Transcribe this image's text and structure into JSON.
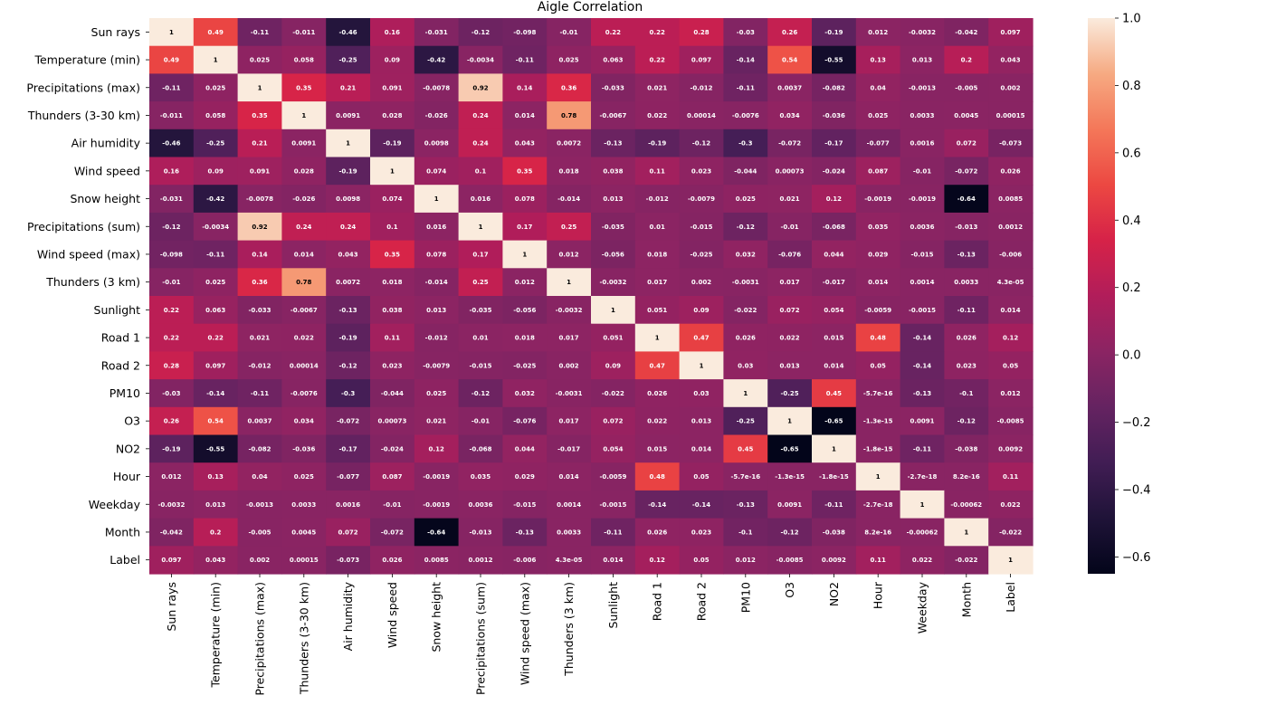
{
  "chart_data": {
    "type": "heatmap",
    "title": "Aigle Correlation",
    "xlabel": "",
    "ylabel": "",
    "labels": [
      "Sun rays",
      "Temperature (min)",
      "Precipitations (max)",
      "Thunders (3-30 km)",
      "Air humidity",
      "Wind speed",
      "Snow height",
      "Precipitations (sum)",
      "Wind speed (max)",
      "Thunders (3 km)",
      "Sunlight",
      "Road 1",
      "Road 2",
      "PM10",
      "O3",
      "NO2",
      "Hour",
      "Weekday",
      "Month",
      "Label"
    ],
    "matrix": [
      [
        "1",
        "0.49",
        "-0.11",
        "-0.011",
        "-0.46",
        "0.16",
        "-0.031",
        "-0.12",
        "-0.098",
        "-0.01",
        "0.22",
        "0.22",
        "0.28",
        "-0.03",
        "0.26",
        "-0.19",
        "0.012",
        "-0.0032",
        "-0.042",
        "0.097"
      ],
      [
        "0.49",
        "1",
        "0.025",
        "0.058",
        "-0.25",
        "0.09",
        "-0.42",
        "-0.0034",
        "-0.11",
        "0.025",
        "0.063",
        "0.22",
        "0.097",
        "-0.14",
        "0.54",
        "-0.55",
        "0.13",
        "0.013",
        "0.2",
        "0.043"
      ],
      [
        "-0.11",
        "0.025",
        "1",
        "0.35",
        "0.21",
        "0.091",
        "-0.0078",
        "0.92",
        "0.14",
        "0.36",
        "-0.033",
        "0.021",
        "-0.012",
        "-0.11",
        "0.0037",
        "-0.082",
        "0.04",
        "-0.0013",
        "-0.005",
        "0.002"
      ],
      [
        "-0.011",
        "0.058",
        "0.35",
        "1",
        "0.0091",
        "0.028",
        "-0.026",
        "0.24",
        "0.014",
        "0.78",
        "-0.0067",
        "0.022",
        "0.00014",
        "-0.0076",
        "0.034",
        "-0.036",
        "0.025",
        "0.0033",
        "0.0045",
        "0.00015"
      ],
      [
        "-0.46",
        "-0.25",
        "0.21",
        "0.0091",
        "1",
        "-0.19",
        "0.0098",
        "0.24",
        "0.043",
        "0.0072",
        "-0.13",
        "-0.19",
        "-0.12",
        "-0.3",
        "-0.072",
        "-0.17",
        "-0.077",
        "0.0016",
        "0.072",
        "-0.073"
      ],
      [
        "0.16",
        "0.09",
        "0.091",
        "0.028",
        "-0.19",
        "1",
        "0.074",
        "0.1",
        "0.35",
        "0.018",
        "0.038",
        "0.11",
        "0.023",
        "-0.044",
        "0.00073",
        "-0.024",
        "0.087",
        "-0.01",
        "-0.072",
        "0.026"
      ],
      [
        "-0.031",
        "-0.42",
        "-0.0078",
        "-0.026",
        "0.0098",
        "0.074",
        "1",
        "0.016",
        "0.078",
        "-0.014",
        "0.013",
        "-0.012",
        "-0.0079",
        "0.025",
        "0.021",
        "0.12",
        "-0.0019",
        "-0.0019",
        "-0.64",
        "0.0085"
      ],
      [
        "-0.12",
        "-0.0034",
        "0.92",
        "0.24",
        "0.24",
        "0.1",
        "0.016",
        "1",
        "0.17",
        "0.25",
        "-0.035",
        "0.01",
        "-0.015",
        "-0.12",
        "-0.01",
        "-0.068",
        "0.035",
        "0.0036",
        "-0.013",
        "0.0012"
      ],
      [
        "-0.098",
        "-0.11",
        "0.14",
        "0.014",
        "0.043",
        "0.35",
        "0.078",
        "0.17",
        "1",
        "0.012",
        "-0.056",
        "0.018",
        "-0.025",
        "0.032",
        "-0.076",
        "0.044",
        "0.029",
        "-0.015",
        "-0.13",
        "-0.006"
      ],
      [
        "-0.01",
        "0.025",
        "0.36",
        "0.78",
        "0.0072",
        "0.018",
        "-0.014",
        "0.25",
        "0.012",
        "1",
        "-0.0032",
        "0.017",
        "0.002",
        "-0.0031",
        "0.017",
        "-0.017",
        "0.014",
        "0.0014",
        "0.0033",
        "4.3e-05"
      ],
      [
        "0.22",
        "0.063",
        "-0.033",
        "-0.0067",
        "-0.13",
        "0.038",
        "0.013",
        "-0.035",
        "-0.056",
        "-0.0032",
        "1",
        "0.051",
        "0.09",
        "-0.022",
        "0.072",
        "0.054",
        "-0.0059",
        "-0.0015",
        "-0.11",
        "0.014"
      ],
      [
        "0.22",
        "0.22",
        "0.021",
        "0.022",
        "-0.19",
        "0.11",
        "-0.012",
        "0.01",
        "0.018",
        "0.017",
        "0.051",
        "1",
        "0.47",
        "0.026",
        "0.022",
        "0.015",
        "0.48",
        "-0.14",
        "0.026",
        "0.12"
      ],
      [
        "0.28",
        "0.097",
        "-0.012",
        "0.00014",
        "-0.12",
        "0.023",
        "-0.0079",
        "-0.015",
        "-0.025",
        "0.002",
        "0.09",
        "0.47",
        "1",
        "0.03",
        "0.013",
        "0.014",
        "0.05",
        "-0.14",
        "0.023",
        "0.05"
      ],
      [
        "-0.03",
        "-0.14",
        "-0.11",
        "-0.0076",
        "-0.3",
        "-0.044",
        "0.025",
        "-0.12",
        "0.032",
        "-0.0031",
        "-0.022",
        "0.026",
        "0.03",
        "1",
        "-0.25",
        "0.45",
        "-5.7e-16",
        "-0.13",
        "-0.1",
        "0.012"
      ],
      [
        "0.26",
        "0.54",
        "0.0037",
        "0.034",
        "-0.072",
        "0.00073",
        "0.021",
        "-0.01",
        "-0.076",
        "0.017",
        "0.072",
        "0.022",
        "0.013",
        "-0.25",
        "1",
        "-0.65",
        "-1.3e-15",
        "0.0091",
        "-0.12",
        "-0.0085"
      ],
      [
        "-0.19",
        "-0.55",
        "-0.082",
        "-0.036",
        "-0.17",
        "-0.024",
        "0.12",
        "-0.068",
        "0.044",
        "-0.017",
        "0.054",
        "0.015",
        "0.014",
        "0.45",
        "-0.65",
        "1",
        "-1.8e-15",
        "-0.11",
        "-0.038",
        "0.0092"
      ],
      [
        "0.012",
        "0.13",
        "0.04",
        "0.025",
        "-0.077",
        "0.087",
        "-0.0019",
        "0.035",
        "0.029",
        "0.014",
        "-0.0059",
        "0.48",
        "0.05",
        "-5.7e-16",
        "-1.3e-15",
        "-1.8e-15",
        "1",
        "-2.7e-18",
        "8.2e-16",
        "0.11"
      ],
      [
        "-0.0032",
        "0.013",
        "-0.0013",
        "0.0033",
        "0.0016",
        "-0.01",
        "-0.0019",
        "0.0036",
        "-0.015",
        "0.0014",
        "-0.0015",
        "-0.14",
        "-0.14",
        "-0.13",
        "0.0091",
        "-0.11",
        "-2.7e-18",
        "1",
        "-0.00062",
        "0.022"
      ],
      [
        "-0.042",
        "0.2",
        "-0.005",
        "0.0045",
        "0.072",
        "-0.072",
        "-0.64",
        "-0.013",
        "-0.13",
        "0.0033",
        "-0.11",
        "0.026",
        "0.023",
        "-0.1",
        "-0.12",
        "-0.038",
        "8.2e-16",
        "-0.00062",
        "1",
        "-0.022"
      ],
      [
        "0.097",
        "0.043",
        "0.002",
        "0.00015",
        "-0.073",
        "0.026",
        "0.0085",
        "0.0012",
        "-0.006",
        "4.3e-05",
        "0.014",
        "0.12",
        "0.05",
        "0.012",
        "-0.0085",
        "0.0092",
        "0.11",
        "0.022",
        "-0.022",
        "1"
      ]
    ],
    "colorbar": {
      "min": -0.65,
      "max": 1.0,
      "ticks": [
        1.0,
        0.8,
        0.6,
        0.4,
        0.2,
        0.0,
        -0.2,
        -0.4,
        -0.6
      ],
      "tick_labels": [
        "1.0",
        "0.8",
        "0.6",
        "0.4",
        "0.2",
        "0.0",
        "−0.2",
        "−0.4",
        "−0.6"
      ]
    },
    "colormap": "rocket",
    "grid": false
  }
}
